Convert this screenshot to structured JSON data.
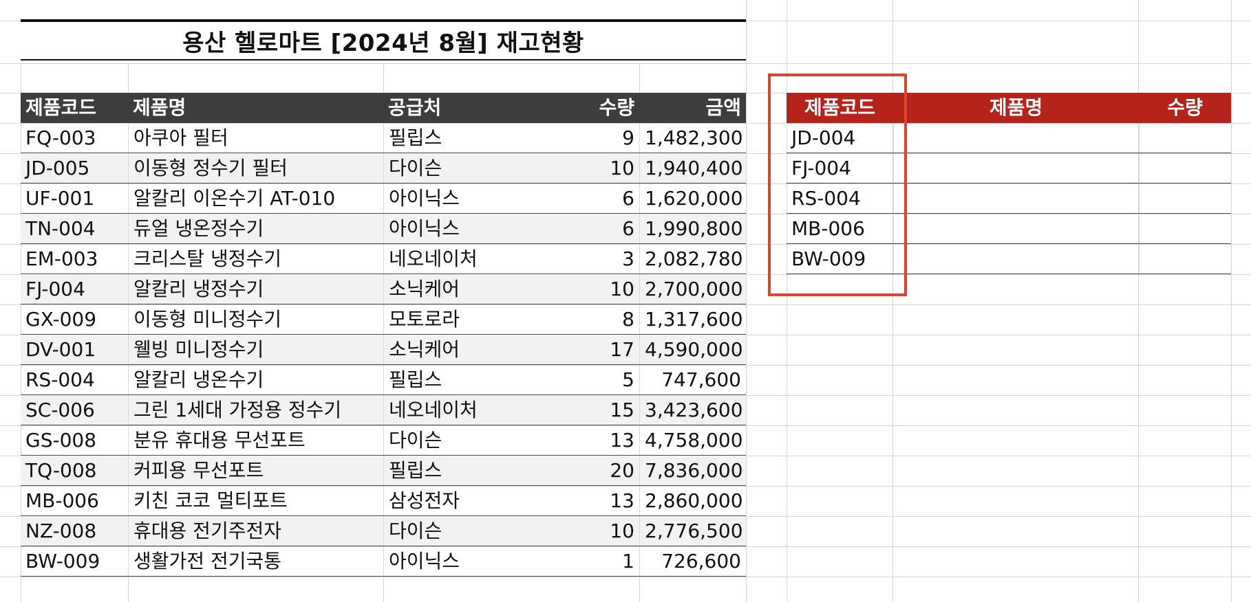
{
  "title": "용산 헬로마트 [2024년 8월] 재고현황",
  "main_table": {
    "headers": [
      "제품코드",
      "제품명",
      "공급처",
      "수량",
      "금액"
    ],
    "rows": [
      [
        "FQ-003",
        "아쿠아 필터",
        "필립스",
        "9",
        "1,482,300"
      ],
      [
        "JD-005",
        "이동형 정수기 필터",
        "다이슨",
        "10",
        "1,940,400"
      ],
      [
        "UF-001",
        "알칼리 이온수기 AT-010",
        "아이닉스",
        "6",
        "1,620,000"
      ],
      [
        "TN-004",
        "듀얼 냉온정수기",
        "아이닉스",
        "6",
        "1,990,800"
      ],
      [
        "EM-003",
        "크리스탈 냉정수기",
        "네오네이처",
        "3",
        "2,082,780"
      ],
      [
        "FJ-004",
        "알칼리 냉정수기",
        "소닉케어",
        "10",
        "2,700,000"
      ],
      [
        "GX-009",
        "이동형 미니정수기",
        "모토로라",
        "8",
        "1,317,600"
      ],
      [
        "DV-001",
        "웰빙 미니정수기",
        "소닉케어",
        "17",
        "4,590,000"
      ],
      [
        "RS-004",
        "알칼리 냉온수기",
        "필립스",
        "5",
        "747,600"
      ],
      [
        "SC-006",
        "그린 1세대 가정용 정수기",
        "네오네이처",
        "15",
        "3,423,600"
      ],
      [
        "GS-008",
        "분유 휴대용 무선포트",
        "다이슨",
        "13",
        "4,758,000"
      ],
      [
        "TQ-008",
        "커피용 무선포트",
        "필립스",
        "20",
        "7,836,000"
      ],
      [
        "MB-006",
        "키친 코코 멀티포트",
        "삼성전자",
        "13",
        "2,860,000"
      ],
      [
        "NZ-008",
        "휴대용 전기주전자",
        "다이슨",
        "10",
        "2,776,500"
      ],
      [
        "BW-009",
        "생활가전 전기국통",
        "아이닉스",
        "1",
        "726,600"
      ]
    ]
  },
  "lookup_table": {
    "headers": [
      "제품코드",
      "제품명",
      "수량"
    ],
    "codes": [
      "JD-004",
      "FJ-004",
      "RS-004",
      "MB-006",
      "BW-009"
    ]
  },
  "colors": {
    "main_header_bg": "#3d3d3d",
    "lookup_header_bg": "#b5231b",
    "highlight_border": "#e0432b"
  }
}
